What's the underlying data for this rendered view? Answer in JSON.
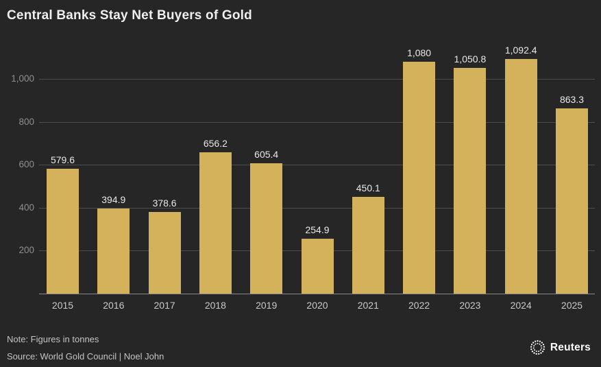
{
  "title": "Central Banks Stay Net Buyers of Gold",
  "footer": {
    "note": "Note: Figures in tonnes",
    "source": "Source: World Gold Council | Noel John"
  },
  "branding": {
    "logo_icon": "reuters-dotted-circle",
    "logo_label": "Reuters"
  },
  "colors": {
    "background": "#262626",
    "bar": "#d4b25c",
    "gridline": "#4e4e4e",
    "baseline": "#8a8a8a",
    "title_text": "#efefef",
    "ytick_text": "#8f8f8f",
    "xtick_text": "#c9c9c9",
    "value_text": "#e9e9e9",
    "footer_text": "#c4c4c4",
    "logo_text": "#ffffff"
  },
  "chart_data": {
    "type": "bar",
    "title": "Central Banks Stay Net Buyers of Gold",
    "xlabel": "",
    "ylabel": "",
    "unit": "tonnes",
    "categories": [
      "2015",
      "2016",
      "2017",
      "2018",
      "2019",
      "2020",
      "2021",
      "2022",
      "2023",
      "2024",
      "2025"
    ],
    "values": [
      579.6,
      394.9,
      378.6,
      656.2,
      605.4,
      254.9,
      450.1,
      1080,
      1050.8,
      1092.4,
      863.3
    ],
    "value_labels": [
      "579.6",
      "394.9",
      "378.6",
      "656.2",
      "605.4",
      "254.9",
      "450.1",
      "1,080",
      "1,050.8",
      "1,092.4",
      "863.3"
    ],
    "ylim": [
      0,
      1150
    ],
    "yticks": [
      200,
      400,
      600,
      800,
      1000
    ],
    "ytick_labels": [
      "200",
      "400",
      "600",
      "800",
      "1,000"
    ],
    "grid": true,
    "legend": false
  }
}
